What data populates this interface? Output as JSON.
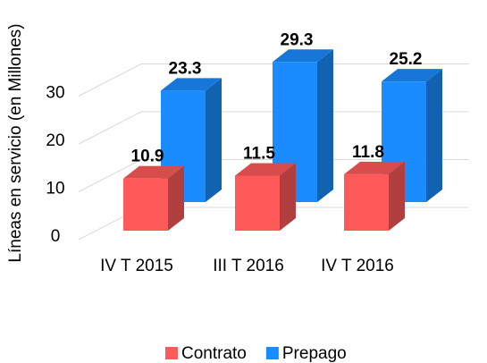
{
  "chart_data": {
    "type": "bar3d",
    "y_label": "Líneas en servicio (en Millones)",
    "categories": [
      "IV T 2015",
      "III T 2016",
      "IV T 2016"
    ],
    "series": [
      {
        "name": "Contrato",
        "color": "#ff5a5a",
        "values": [
          10.9,
          11.5,
          11.8
        ]
      },
      {
        "name": "Prepago",
        "color": "#1a8cff",
        "values": [
          23.3,
          29.3,
          25.2
        ]
      }
    ],
    "ylim": [
      0,
      40
    ],
    "yticks": [
      0,
      10,
      20,
      30
    ],
    "grid": true,
    "legend": "bottom"
  }
}
